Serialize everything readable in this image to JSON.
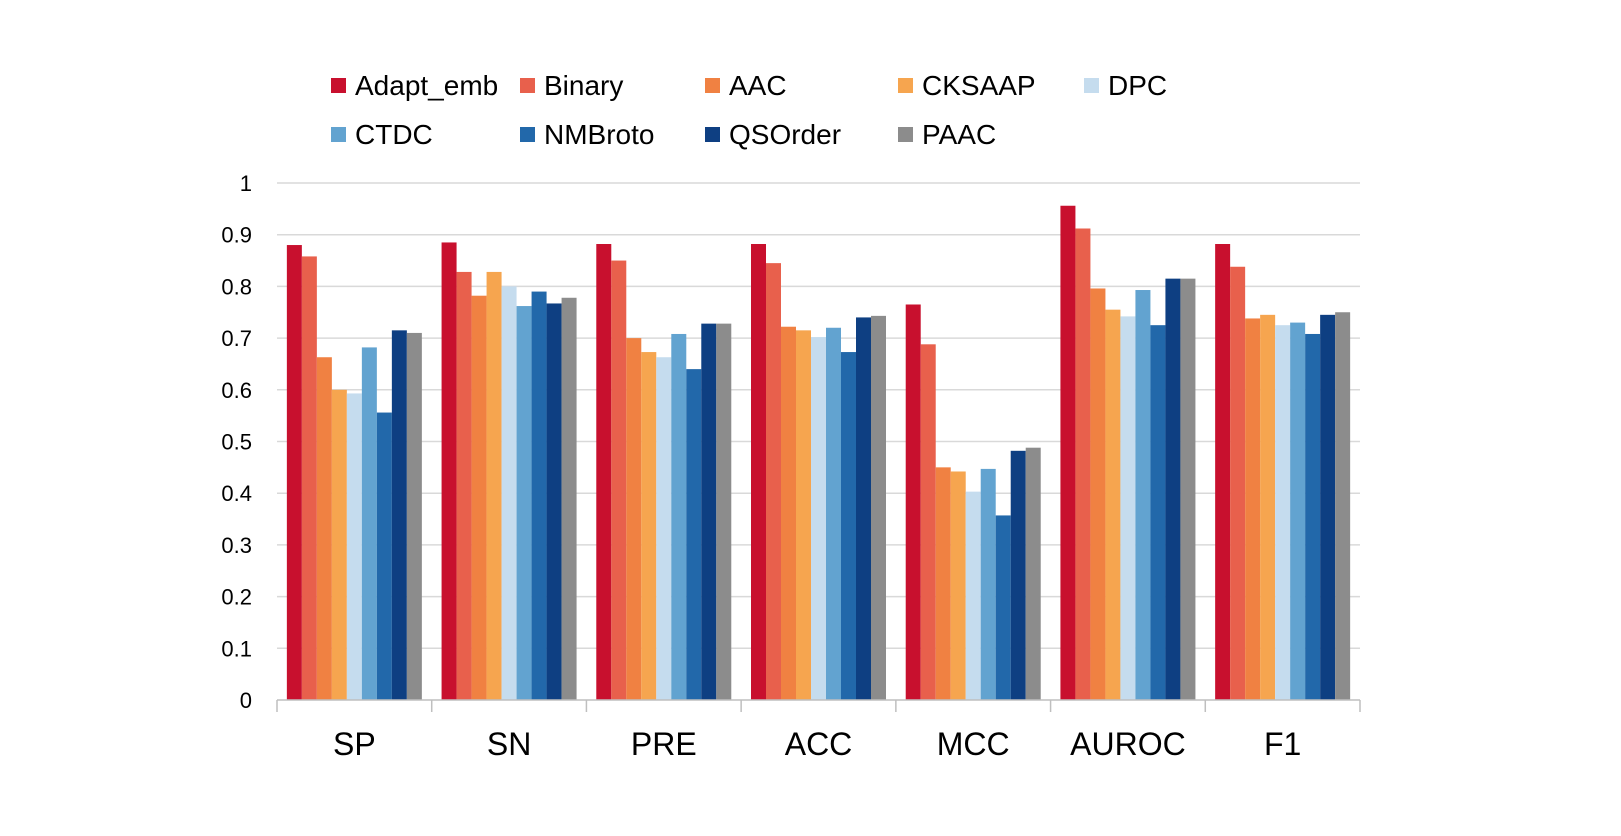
{
  "chart_data": {
    "type": "bar",
    "title": "",
    "xlabel": "",
    "ylabel": "",
    "ylim": [
      0,
      1
    ],
    "yticks": [
      "0",
      "0.1",
      "0.2",
      "0.3",
      "0.4",
      "0.5",
      "0.6",
      "0.7",
      "0.8",
      "0.9",
      "1"
    ],
    "grid": true,
    "legend_position": "top",
    "categories": [
      "SP",
      "SN",
      "PRE",
      "ACC",
      "MCC",
      "AUROC",
      "F1"
    ],
    "series": [
      {
        "name": "Adapt_emb",
        "color": "#c8102e",
        "values": [
          0.88,
          0.885,
          0.882,
          0.882,
          0.765,
          0.956,
          0.882
        ]
      },
      {
        "name": "Binary",
        "color": "#e8604c",
        "values": [
          0.858,
          0.828,
          0.85,
          0.845,
          0.688,
          0.912,
          0.838
        ]
      },
      {
        "name": "AAC",
        "color": "#f08142",
        "values": [
          0.663,
          0.782,
          0.7,
          0.722,
          0.45,
          0.796,
          0.738
        ]
      },
      {
        "name": "CKSAAP",
        "color": "#f6a54f",
        "values": [
          0.6,
          0.828,
          0.673,
          0.715,
          0.442,
          0.755,
          0.745
        ]
      },
      {
        "name": "DPC",
        "color": "#c5dcee",
        "values": [
          0.593,
          0.8,
          0.663,
          0.702,
          0.403,
          0.742,
          0.725
        ]
      },
      {
        "name": "CTDC",
        "color": "#62a3d0",
        "values": [
          0.682,
          0.762,
          0.708,
          0.72,
          0.447,
          0.793,
          0.73
        ]
      },
      {
        "name": "NMBroto",
        "color": "#2268aa",
        "values": [
          0.556,
          0.79,
          0.64,
          0.673,
          0.357,
          0.725,
          0.708
        ]
      },
      {
        "name": "QSOrder",
        "color": "#0e3f82",
        "values": [
          0.715,
          0.767,
          0.728,
          0.74,
          0.482,
          0.815,
          0.745
        ]
      },
      {
        "name": "PAAC",
        "color": "#8c8c8c",
        "values": [
          0.71,
          0.778,
          0.728,
          0.743,
          0.488,
          0.815,
          0.75
        ]
      }
    ]
  }
}
